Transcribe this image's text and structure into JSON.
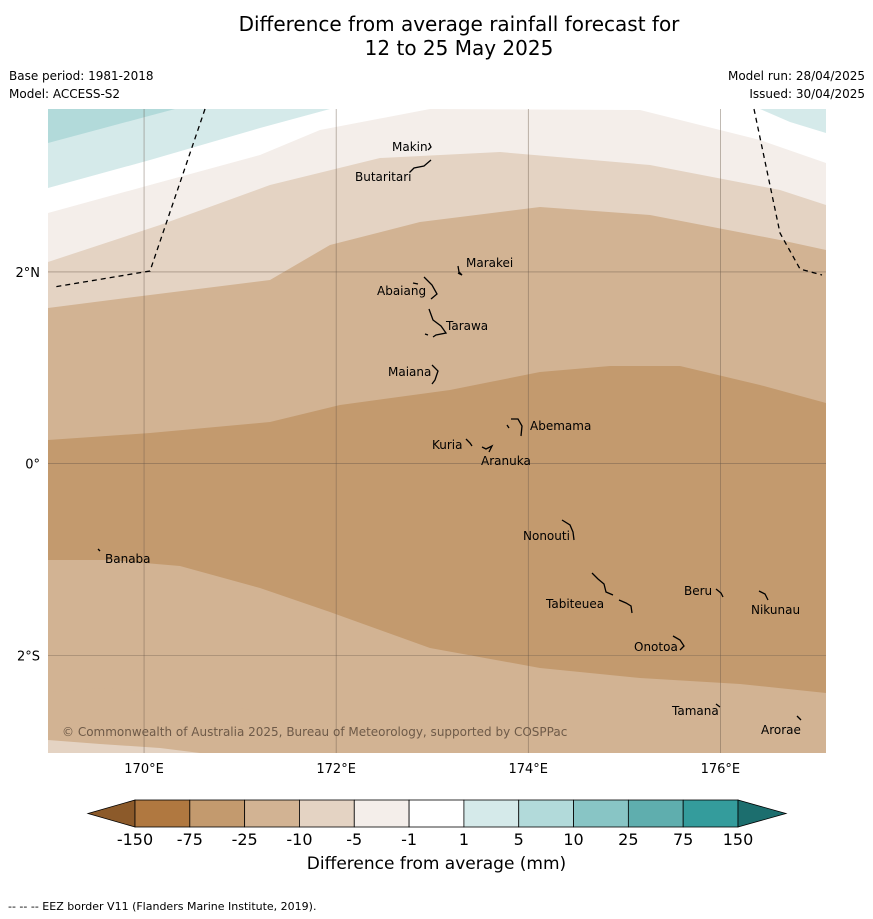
{
  "title": "Difference from average rainfall forecast for\n12 to 25 May 2025",
  "meta_left": {
    "base_period": "Base period: 1981-2018",
    "model": "Model: ACCESS-S2"
  },
  "meta_right": {
    "model_run": "Model run: 28/04/2025",
    "issued": "Issued: 30/04/2025"
  },
  "map": {
    "lon_range": [
      169,
      177.1
    ],
    "lat_range": [
      -3.02,
      3.7
    ],
    "lat_ticks": [
      {
        "value": 2,
        "label": "2°N"
      },
      {
        "value": 0,
        "label": "0°"
      },
      {
        "value": -2,
        "label": "2°S"
      }
    ],
    "lon_ticks": [
      {
        "value": 170,
        "label": "170°E"
      },
      {
        "value": 172,
        "label": "172°E"
      },
      {
        "value": 174,
        "label": "174°E"
      },
      {
        "value": 176,
        "label": "176°E"
      }
    ],
    "copyright": "© Commonwealth of Australia 2025, Bureau of Meteorology, supported by COSPPac",
    "islands": [
      {
        "name": "Makin",
        "lon": 173.0,
        "lat": 3.36
      },
      {
        "name": "Butaritari",
        "lon": 172.8,
        "lat": 3.07
      },
      {
        "name": "Marakei",
        "lon": 173.3,
        "lat": 2.0
      },
      {
        "name": "Abaiang",
        "lon": 172.9,
        "lat": 1.8
      },
      {
        "name": "Tarawa",
        "lon": 173.1,
        "lat": 1.4
      },
      {
        "name": "Maiana",
        "lon": 173.0,
        "lat": 0.95
      },
      {
        "name": "Abemama",
        "lon": 173.9,
        "lat": 0.38
      },
      {
        "name": "Kuria",
        "lon": 173.4,
        "lat": 0.22
      },
      {
        "name": "Aranuka",
        "lon": 173.6,
        "lat": 0.16
      },
      {
        "name": "Nonouti",
        "lon": 174.4,
        "lat": -0.65
      },
      {
        "name": "Banaba",
        "lon": 169.55,
        "lat": -0.88
      },
      {
        "name": "Beru",
        "lon": 176.0,
        "lat": -1.32
      },
      {
        "name": "Nikunau",
        "lon": 176.45,
        "lat": -1.35
      },
      {
        "name": "Tabiteuea",
        "lon": 174.8,
        "lat": -1.3
      },
      {
        "name": "Onotoa",
        "lon": 175.55,
        "lat": -1.8
      },
      {
        "name": "Tamana",
        "lon": 176.0,
        "lat": -2.5
      },
      {
        "name": "Arorae",
        "lon": 176.8,
        "lat": -2.65
      }
    ]
  },
  "colorbar": {
    "title": "Difference from average (mm)",
    "tick_labels": [
      "-150",
      "-75",
      "-25",
      "-10",
      "-5",
      "-1",
      "1",
      "5",
      "10",
      "25",
      "75",
      "150"
    ],
    "colors": [
      "#8c5a2a",
      "#b07840",
      "#c39a6e",
      "#d2b393",
      "#e4d3c3",
      "#f4eeea",
      "#ffffff",
      "#d5eaea",
      "#b2dada",
      "#88c5c5",
      "#5faeae",
      "#349c9c",
      "#1c6e6e"
    ]
  },
  "footer": "--  --  -- EEZ border V11 (Flanders Marine Institute, 2019)."
}
